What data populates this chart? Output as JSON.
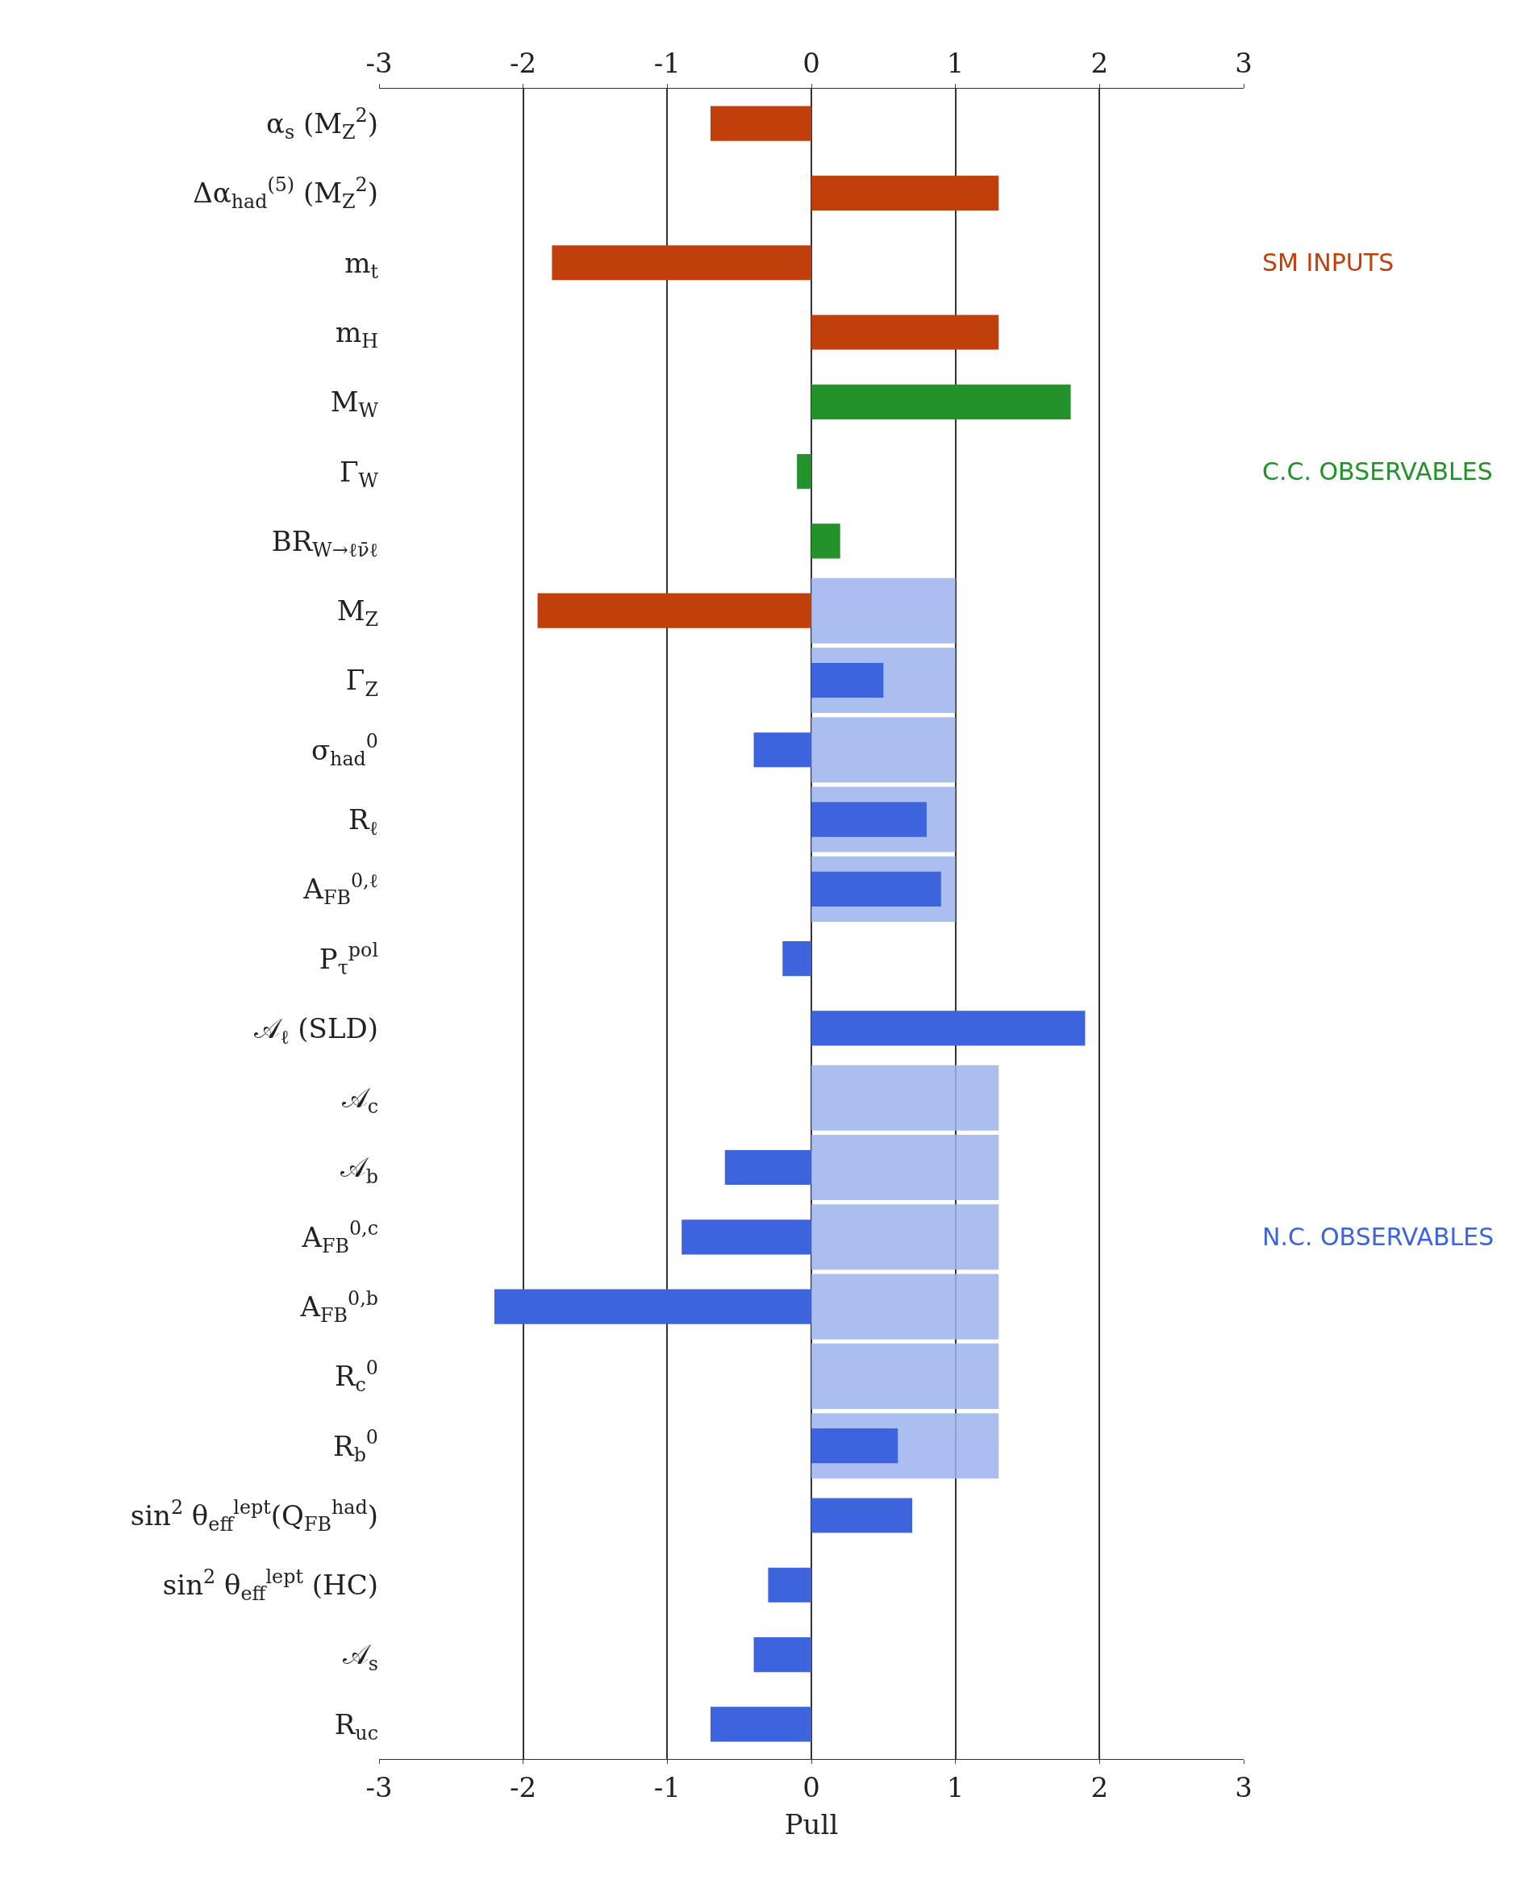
{
  "chart_data": {
    "type": "bar",
    "orientation": "horizontal",
    "xlabel": "Pull",
    "categories": [
      "α$_{s}$ (M$_{Z}$$^{2}$)",
      "Δα$_{had}$$^{(5)}$ (M$_{Z}$$^{2}$)",
      "m$_{t}$",
      "m$_{H}$",
      "M$_{W}$",
      "Γ$_{W}$",
      "BR$_{W→ℓν̄ℓ}$",
      "M$_{Z}$",
      "Γ$_{Z}$",
      "σ$_{had}$$^{0}$",
      "R$_{ℓ}$",
      "A$_{FB}$$^{0,ℓ}$",
      "P$_{τ}$$^{pol}$",
      "𝒜$_{ℓ}$ (SLD)",
      "𝒜$_{c}$",
      "𝒜$_{b}$",
      "A$_{FB}$$^{0,c}$",
      "A$_{FB}$$^{0,b}$",
      "R$_{c}$$^{0}$",
      "R$_{b}$$^{0}$",
      "sin$^{2}$ θ$_{eff}$$^{lept}$(Q$_{FB}$$^{had}$)",
      "sin$^{2}$ θ$_{eff}$$^{lept}$ (HC)",
      "𝒜$_{s}$",
      "R$_{uc}$"
    ],
    "series": [
      {
        "color": "#9db3ee",
        "values": [
          null,
          null,
          null,
          null,
          null,
          null,
          null,
          1,
          1,
          1,
          1,
          1,
          null,
          null,
          1.3,
          1.3,
          1.3,
          1.3,
          1.3,
          1.3,
          null,
          null,
          null,
          null
        ]
      },
      {
        "name": "SM INPUTS",
        "color": "#c13f0a",
        "values": [
          -0.7,
          1.3,
          -1.8,
          1.3,
          null,
          null,
          null,
          -1.9,
          null,
          null,
          null,
          null,
          null,
          null,
          null,
          null,
          null,
          null,
          null,
          null,
          null,
          null,
          null,
          null
        ]
      },
      {
        "name": "C.C. OBSERVABLES",
        "color": "#23922b",
        "values": [
          null,
          null,
          null,
          null,
          1.8,
          -0.1,
          0.2,
          null,
          null,
          null,
          null,
          null,
          null,
          null,
          null,
          null,
          null,
          null,
          null,
          null,
          null,
          null,
          null,
          null
        ]
      },
      {
        "name": "N.C. OBSERVABLES",
        "color": "#3d63dd",
        "values": [
          null,
          null,
          null,
          null,
          null,
          null,
          null,
          null,
          0.5,
          -0.4,
          0.8,
          0.9,
          -0.2,
          1.9,
          0,
          -0.6,
          -0.9,
          -2.2,
          0,
          0.6,
          0.7,
          -0.3,
          -0.4,
          -0.7
        ]
      }
    ],
    "xlim": [
      -3,
      3
    ],
    "xticks": [
      -3,
      -2,
      -1,
      0,
      1,
      2,
      3
    ],
    "x2lim": [
      -3,
      3
    ],
    "x2ticks": [
      -3,
      -2,
      -1,
      0,
      1,
      2,
      3
    ],
    "grid": "x"
  }
}
